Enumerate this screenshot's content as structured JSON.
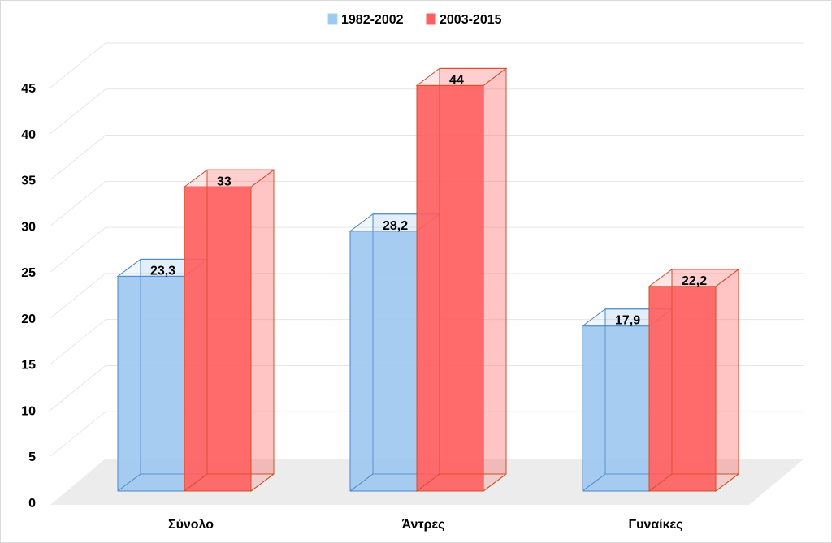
{
  "chart_data": {
    "type": "bar",
    "title": "",
    "xlabel": "",
    "ylabel": "",
    "categories": [
      "Σύνολο",
      "Άντρες",
      "Γυναίκες"
    ],
    "series": [
      {
        "name": "1982-2002",
        "values": [
          23.3,
          28.2,
          17.9
        ],
        "labels": [
          "23,3",
          "28,2",
          "17,9"
        ],
        "color": "#9fc8f0",
        "edge": "#4a86c8"
      },
      {
        "name": "2003-2015",
        "values": [
          33,
          44,
          22.2
        ],
        "labels": [
          "33",
          "44",
          "22,2"
        ],
        "color": "#ff5f5f",
        "edge": "#d0502a"
      }
    ],
    "ylim": [
      0,
      45
    ],
    "yticks": [
      0,
      5,
      10,
      15,
      20,
      25,
      30,
      35,
      40,
      45
    ],
    "grid": true,
    "legend_position": "top-center",
    "three_d": true
  }
}
